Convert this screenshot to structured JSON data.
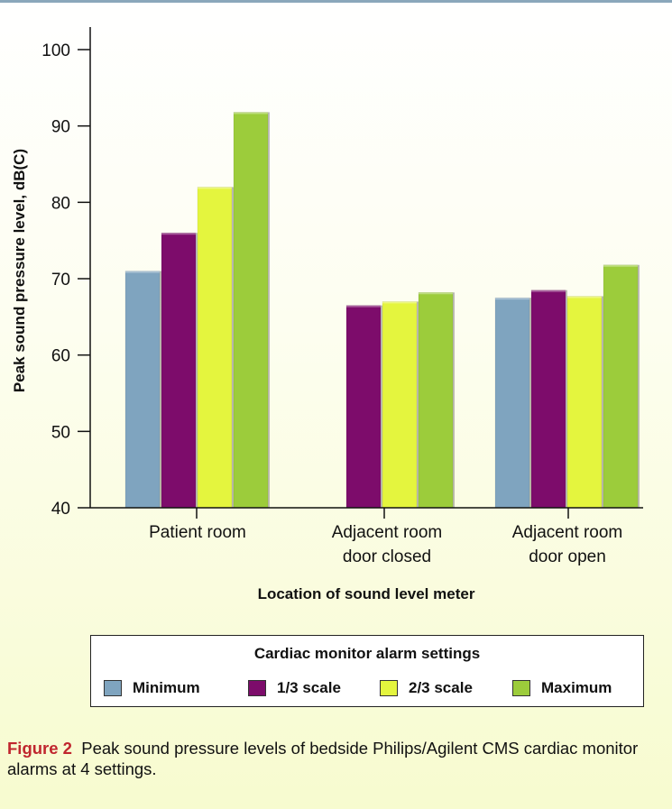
{
  "chart_data": {
    "type": "bar",
    "categories": [
      [
        "Patient room"
      ],
      [
        "Adjacent room",
        "door closed"
      ],
      [
        "Adjacent room",
        "door open"
      ]
    ],
    "series": [
      {
        "name": "Minimum",
        "color": "#7fa4bf",
        "values": [
          71.0,
          null,
          67.5
        ]
      },
      {
        "name": "1/3 scale",
        "color": "#7d0c6b",
        "values": [
          76.0,
          66.5,
          68.5
        ]
      },
      {
        "name": "2/3 scale",
        "color": "#e4f53e",
        "values": [
          82.0,
          67.0,
          67.7
        ]
      },
      {
        "name": "Maximum",
        "color": "#9ccc3b",
        "values": [
          91.8,
          68.2,
          71.8
        ]
      }
    ],
    "ylabel": "Peak sound pressure level, dB(C)",
    "xlabel": "Location of sound level meter",
    "ylim": [
      40,
      100
    ],
    "yticks": [
      40,
      50,
      60,
      70,
      80,
      90,
      100
    ],
    "legend_title": "Cardiac monitor alarm settings",
    "grid": false
  },
  "caption": {
    "label": "Figure 2",
    "text": "Peak sound pressure levels of bedside Philips/Agilent CMS cardiac monitor alarms at 4 settings."
  }
}
